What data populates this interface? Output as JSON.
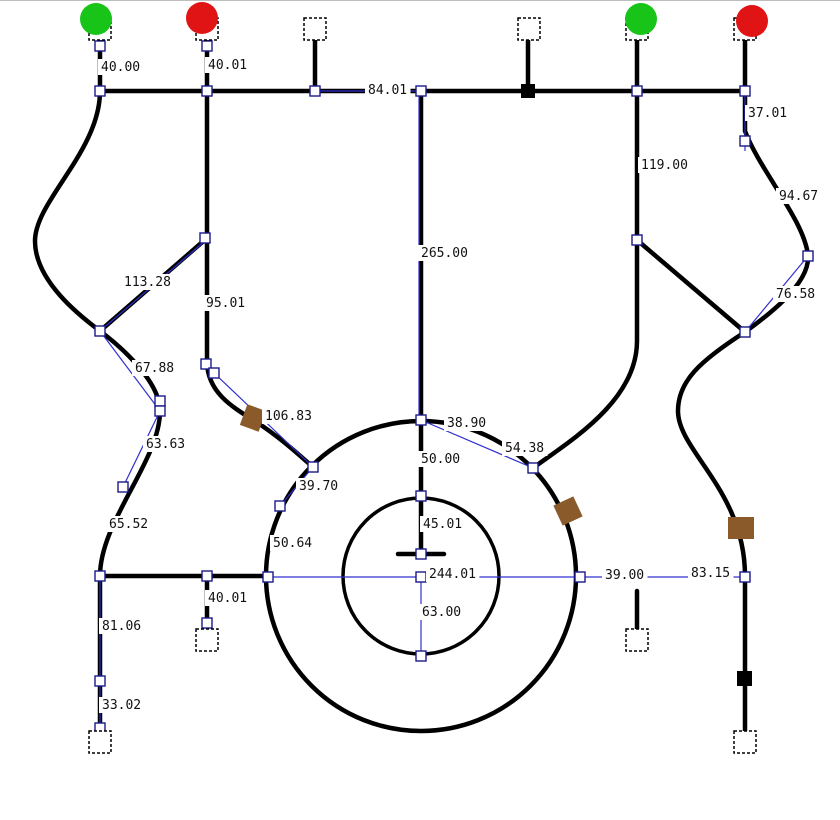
{
  "colors": {
    "track": "#000000",
    "guide": "#3030d0",
    "signal_green": "#19c419",
    "signal_red": "#e01414",
    "obstacle": "#8b5a2b"
  },
  "signals": [
    {
      "id": "s1",
      "color": "green"
    },
    {
      "id": "s2",
      "color": "red"
    },
    {
      "id": "s3",
      "color": "green"
    },
    {
      "id": "s4",
      "color": "red"
    }
  ],
  "dimensions": [
    "40.00",
    "40.01",
    "84.01",
    "37.01",
    "119.00",
    "94.67",
    "265.00",
    "113.28",
    "95.01",
    "76.58",
    "67.88",
    "106.83",
    "38.90",
    "54.38",
    "63.63",
    "50.00",
    "39.70",
    "65.52",
    "45.01",
    "50.64",
    "244.01",
    "39.00",
    "83.15",
    "40.01",
    "81.06",
    "63.00",
    "33.02"
  ]
}
